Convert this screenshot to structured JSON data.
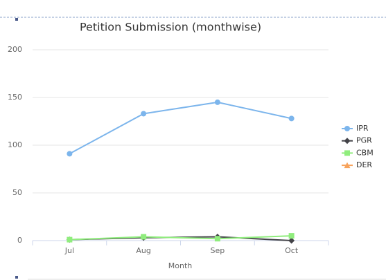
{
  "chart_data": {
    "type": "line",
    "title": "Petition Submission (monthwise)",
    "x_label": "Month",
    "categories": [
      "Jul",
      "Aug",
      "Sep",
      "Oct"
    ],
    "series": [
      {
        "name": "IPR",
        "color": "#7cb5ec",
        "marker": "circle",
        "values": [
          91,
          133,
          145,
          128
        ]
      },
      {
        "name": "PGR",
        "color": "#434348",
        "marker": "diamond",
        "values": [
          1,
          3,
          4,
          0
        ]
      },
      {
        "name": "CBM",
        "color": "#90ed7d",
        "marker": "square",
        "values": [
          1,
          4,
          2,
          5
        ]
      },
      {
        "name": "DER",
        "color": "#f7a35c",
        "marker": "triangle",
        "values": [
          null,
          null,
          null,
          null
        ]
      }
    ],
    "ylim": [
      0,
      200
    ],
    "yticks": [
      0,
      50,
      100,
      150,
      200
    ],
    "grid": true,
    "legend": "right"
  }
}
